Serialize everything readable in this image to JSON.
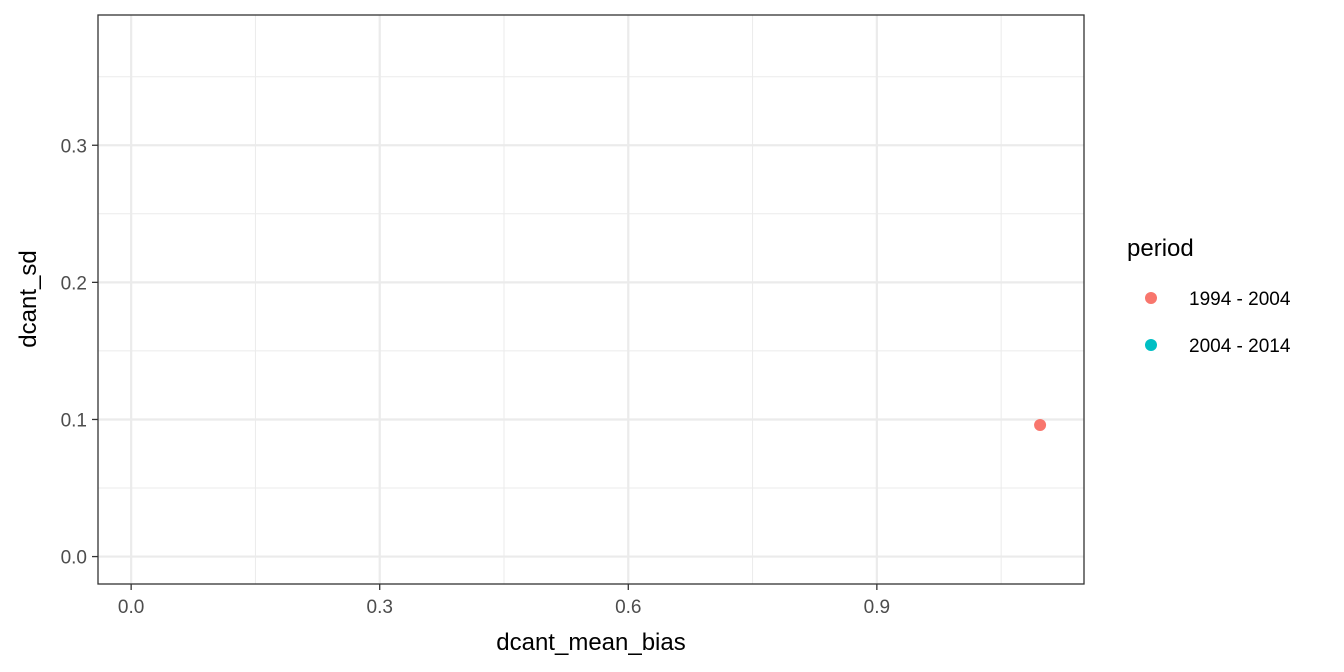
{
  "chart_data": {
    "type": "scatter",
    "title": "",
    "xlabel": "dcant_mean_bias",
    "ylabel": "dcant_sd",
    "xlim": [
      -0.04,
      1.15
    ],
    "ylim": [
      -0.02,
      0.395
    ],
    "x_ticks": [
      0.0,
      0.3,
      0.6,
      0.9
    ],
    "x_tick_labels": [
      "0.0",
      "0.3",
      "0.6",
      "0.9"
    ],
    "y_ticks": [
      0.0,
      0.1,
      0.2,
      0.3
    ],
    "y_tick_labels": [
      "0.0",
      "0.1",
      "0.2",
      "0.3"
    ],
    "grid": true,
    "legend": {
      "title": "period",
      "placement": "right",
      "entries": [
        {
          "label": "1994 - 2004",
          "color": "#F8766D"
        },
        {
          "label": "2004 - 2014",
          "color": "#00BFC4"
        }
      ]
    },
    "series": [
      {
        "name": "1994 - 2004",
        "color": "#F8766D",
        "points": [
          {
            "x": 1.097,
            "y": 0.096
          }
        ]
      },
      {
        "name": "2004 - 2014",
        "color": "#00BFC4",
        "points": []
      }
    ]
  }
}
